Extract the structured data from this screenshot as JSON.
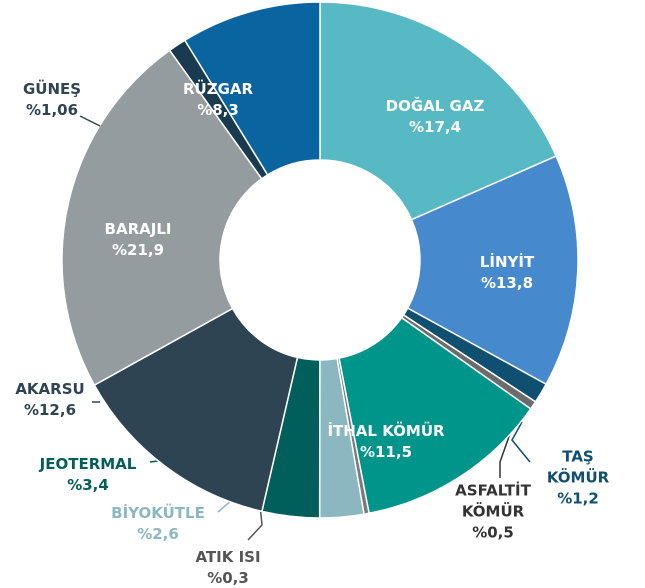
{
  "chart_data": {
    "type": "donut",
    "categories": [
      "DOĞAL GAZ",
      "LİNYİT",
      "TAŞ KÖMÜR",
      "ASFALTİT KÖMÜR",
      "İTHAL KÖMÜR",
      "ATIK ISI",
      "BİYOKÜTLE",
      "JEOTERMAL",
      "AKARSU",
      "BARAJLI",
      "GÜNEŞ",
      "RÜZGAR"
    ],
    "values": [
      17.4,
      13.8,
      1.2,
      0.5,
      11.5,
      0.3,
      2.6,
      3.4,
      12.6,
      21.9,
      1.06,
      8.3
    ],
    "value_labels": [
      "%17,4",
      "%13,8",
      "%1,2",
      "%0,5",
      "%11,5",
      "%0,3",
      "%2,6",
      "%3,4",
      "%12,6",
      "%21,9",
      "%1,06",
      "%8,3"
    ],
    "colors": [
      "#56b9c4",
      "#4689cc",
      "#0f4f70",
      "#6b6b6b",
      "#00958a",
      "#7a7a7a",
      "#8bb8c0",
      "#005f5a",
      "#2e4452",
      "#959c9f",
      "#1a3a50",
      "#0a64a0"
    ]
  }
}
